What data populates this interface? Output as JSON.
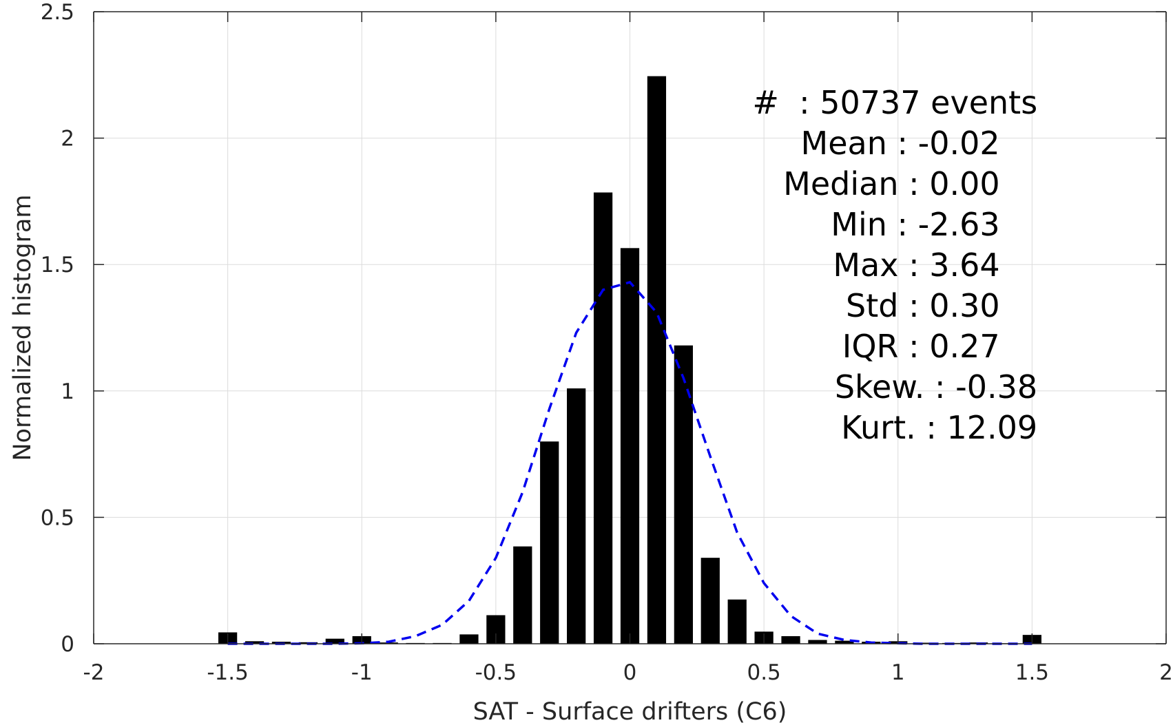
{
  "chart_data": {
    "type": "bar",
    "xlabel": "SAT - Surface drifters (C6)",
    "ylabel": "Normalized histogram",
    "xlim": [
      -2,
      2
    ],
    "ylim": [
      0,
      2.5
    ],
    "xticks": [
      -2,
      -1.5,
      -1,
      -0.5,
      0,
      0.5,
      1,
      1.5,
      2
    ],
    "xtick_labels": [
      "-2",
      "-1.5",
      "-1",
      "-0.5",
      "0",
      "0.5",
      "1",
      "1.5",
      "2"
    ],
    "yticks": [
      0,
      0.5,
      1,
      1.5,
      2,
      2.5
    ],
    "ytick_labels": [
      "0",
      "0.5",
      "1",
      "1.5",
      "2",
      "2.5"
    ],
    "grid": true,
    "series": [
      {
        "type": "bar",
        "color": "#000000",
        "x": [
          -1.5,
          -1.4,
          -1.3,
          -1.2,
          -1.1,
          -1.0,
          -0.9,
          -0.8,
          -0.7,
          -0.6,
          -0.5,
          -0.4,
          -0.3,
          -0.2,
          -0.1,
          0.0,
          0.1,
          0.2,
          0.3,
          0.4,
          0.5,
          0.6,
          0.7,
          0.8,
          0.9,
          1.0,
          1.1,
          1.2,
          1.3,
          1.4,
          1.5
        ],
        "values": [
          0.045,
          0.01,
          0.008,
          0.006,
          0.02,
          0.03,
          0.005,
          0.003,
          0.003,
          0.037,
          0.113,
          0.385,
          0.8,
          1.01,
          1.785,
          1.565,
          2.245,
          1.18,
          0.34,
          0.175,
          0.048,
          0.03,
          0.015,
          0.012,
          0.008,
          0.01,
          0.004,
          0.003,
          0.005,
          0.002,
          0.035
        ]
      },
      {
        "type": "line",
        "style": "dashed",
        "color": "#0000ee",
        "x": [
          -1.5,
          -1.4,
          -1.3,
          -1.2,
          -1.1,
          -1.0,
          -0.9,
          -0.8,
          -0.7,
          -0.6,
          -0.5,
          -0.4,
          -0.3,
          -0.2,
          -0.1,
          0.0,
          0.1,
          0.2,
          0.3,
          0.4,
          0.5,
          0.6,
          0.7,
          0.8,
          0.9,
          1.0,
          1.1,
          1.2,
          1.3,
          1.4,
          1.5
        ],
        "values": [
          0.0,
          0.0,
          0.0,
          0.0,
          0.0,
          0.002,
          0.008,
          0.03,
          0.075,
          0.17,
          0.34,
          0.6,
          0.93,
          1.23,
          1.4,
          1.43,
          1.31,
          1.05,
          0.74,
          0.44,
          0.24,
          0.11,
          0.04,
          0.015,
          0.005,
          0.002,
          0.0,
          0.0,
          0.0,
          0.0,
          0.0
        ]
      }
    ],
    "annotation_lines": [
      {
        "text": "#  : 50737 events",
        "right_x": 1.52
      },
      {
        "text": "Mean : -0.02",
        "right_x": 1.38
      },
      {
        "text": "Median : 0.00",
        "right_x": 1.38
      },
      {
        "text": "Min : -2.63",
        "right_x": 1.38
      },
      {
        "text": "Max : 3.64",
        "right_x": 1.38
      },
      {
        "text": "Std : 0.30",
        "right_x": 1.38
      },
      {
        "text": "IQR : 0.27",
        "right_x": 1.38
      },
      {
        "text": "Skew. : -0.38",
        "right_x": 1.52
      },
      {
        "text": "Kurt. : 12.09",
        "right_x": 1.52
      }
    ]
  }
}
